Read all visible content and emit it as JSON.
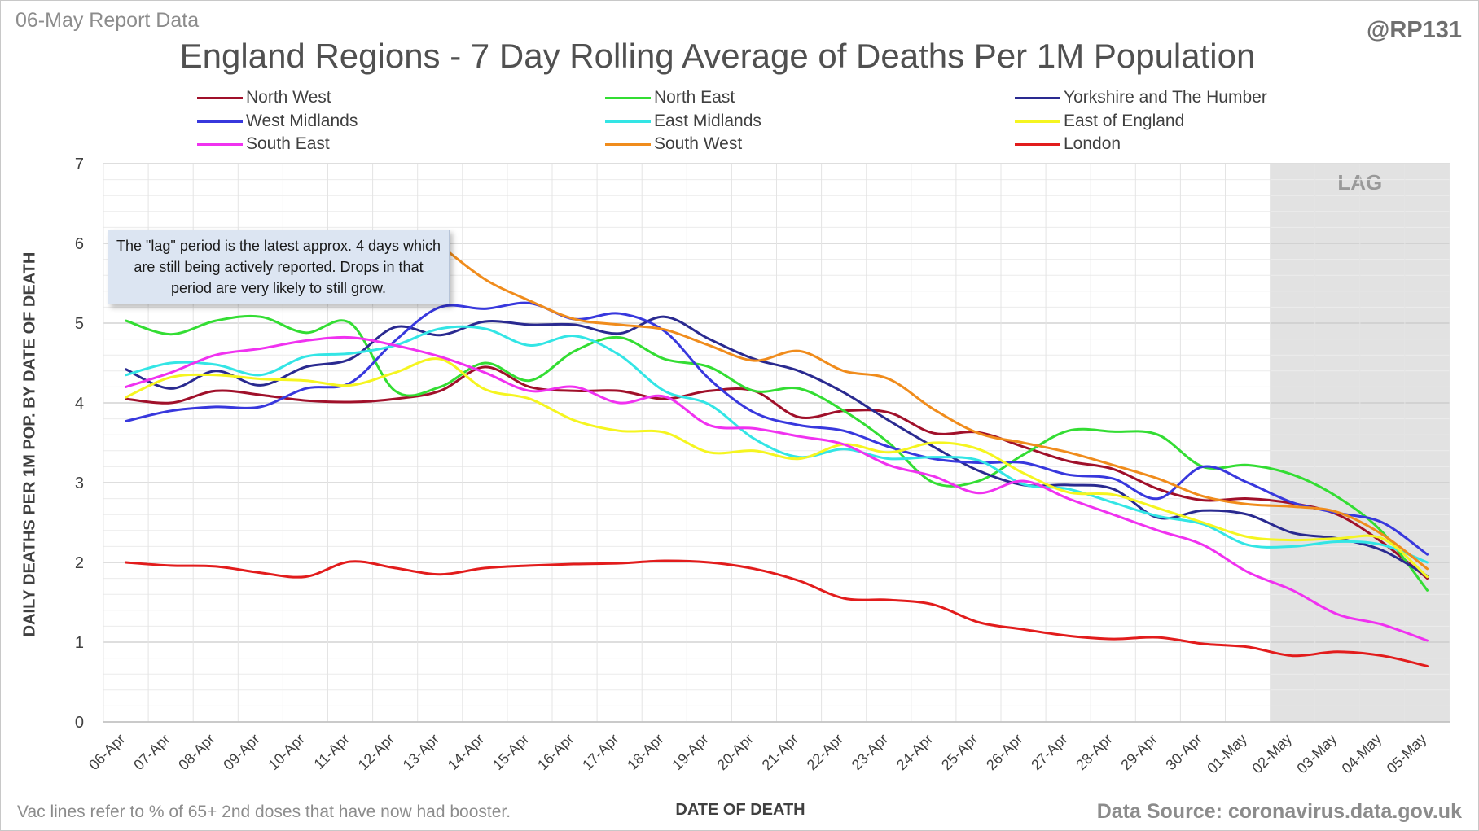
{
  "header": {
    "report_date": "06-May Report Data",
    "handle": "@RP131",
    "title": "England Regions - 7 Day Rolling Average of Deaths Per 1M Population"
  },
  "footer": {
    "vac_note": "Vac lines refer to % of 65+ 2nd doses that have now had booster.",
    "source": "Data Source: coronavirus.data.gov.uk"
  },
  "annotation": {
    "note": "The \"lag\" period is the latest approx. 4 days which are still being actively reported.  Drops in that period are very likely to still grow.",
    "lag_label": "LAG"
  },
  "chart_data": {
    "type": "line",
    "title": "England Regions - 7 Day Rolling Average of Deaths Per 1M Population",
    "xlabel": "DATE OF DEATH",
    "ylabel": "DAILY DEATHS PER 1M POP. BY DATE OF DEATH",
    "ylim": [
      0,
      7
    ],
    "yticks": [
      0,
      1,
      2,
      3,
      4,
      5,
      6,
      7
    ],
    "grid": true,
    "legend_position": "top",
    "lag_start": "02-May",
    "lag_end": "05-May",
    "categories": [
      "06-Apr",
      "07-Apr",
      "08-Apr",
      "09-Apr",
      "10-Apr",
      "11-Apr",
      "12-Apr",
      "13-Apr",
      "14-Apr",
      "15-Apr",
      "16-Apr",
      "17-Apr",
      "18-Apr",
      "19-Apr",
      "20-Apr",
      "21-Apr",
      "22-Apr",
      "23-Apr",
      "24-Apr",
      "25-Apr",
      "26-Apr",
      "27-Apr",
      "28-Apr",
      "29-Apr",
      "30-Apr",
      "01-May",
      "02-May",
      "03-May",
      "04-May",
      "05-May"
    ],
    "series": [
      {
        "name": "North West",
        "color": "#a0102a",
        "values": [
          4.05,
          4.0,
          4.15,
          4.1,
          4.03,
          4.01,
          4.05,
          4.15,
          4.45,
          4.2,
          4.15,
          4.15,
          4.05,
          4.15,
          4.15,
          3.82,
          3.9,
          3.88,
          3.62,
          3.63,
          3.45,
          3.27,
          3.17,
          2.92,
          2.78,
          2.8,
          2.74,
          2.6,
          2.25,
          1.8
        ]
      },
      {
        "name": "North East",
        "color": "#33dd33",
        "values": [
          5.03,
          4.86,
          5.03,
          5.08,
          4.88,
          5.0,
          4.15,
          4.2,
          4.5,
          4.28,
          4.65,
          4.82,
          4.55,
          4.45,
          4.15,
          4.18,
          3.9,
          3.5,
          3.0,
          3.02,
          3.35,
          3.65,
          3.64,
          3.6,
          3.2,
          3.22,
          3.1,
          2.82,
          2.38,
          1.65
        ]
      },
      {
        "name": "Yorkshire and The Humber",
        "color": "#2a2a90",
        "values": [
          4.42,
          4.18,
          4.4,
          4.22,
          4.45,
          4.55,
          4.95,
          4.85,
          5.02,
          4.98,
          4.98,
          4.87,
          5.08,
          4.8,
          4.55,
          4.4,
          4.13,
          3.78,
          3.45,
          3.15,
          2.97,
          2.97,
          2.92,
          2.56,
          2.65,
          2.6,
          2.37,
          2.3,
          2.15,
          1.83
        ]
      },
      {
        "name": "West Midlands",
        "color": "#3838dd",
        "values": [
          3.77,
          3.9,
          3.95,
          3.95,
          4.18,
          4.25,
          4.78,
          5.2,
          5.18,
          5.25,
          5.05,
          5.12,
          4.9,
          4.3,
          3.88,
          3.72,
          3.65,
          3.45,
          3.3,
          3.25,
          3.25,
          3.1,
          3.05,
          2.8,
          3.2,
          3.0,
          2.75,
          2.62,
          2.5,
          2.1
        ]
      },
      {
        "name": "East Midlands",
        "color": "#33e5e5",
        "values": [
          4.35,
          4.5,
          4.48,
          4.35,
          4.58,
          4.62,
          4.72,
          4.93,
          4.93,
          4.72,
          4.84,
          4.6,
          4.15,
          3.98,
          3.55,
          3.32,
          3.42,
          3.3,
          3.32,
          3.28,
          2.98,
          2.92,
          2.75,
          2.58,
          2.48,
          2.22,
          2.2,
          2.26,
          2.22,
          2.0
        ]
      },
      {
        "name": "East of England",
        "color": "#f5f520",
        "values": [
          4.07,
          4.32,
          4.35,
          4.3,
          4.28,
          4.22,
          4.38,
          4.55,
          4.17,
          4.05,
          3.78,
          3.65,
          3.63,
          3.38,
          3.4,
          3.3,
          3.48,
          3.38,
          3.5,
          3.42,
          3.12,
          2.88,
          2.85,
          2.68,
          2.5,
          2.32,
          2.28,
          2.3,
          2.3,
          1.82
        ]
      },
      {
        "name": "South East",
        "color": "#f032f0",
        "values": [
          4.2,
          4.38,
          4.6,
          4.68,
          4.78,
          4.82,
          4.72,
          4.58,
          4.38,
          4.15,
          4.2,
          4.0,
          4.08,
          3.72,
          3.68,
          3.58,
          3.48,
          3.22,
          3.08,
          2.87,
          3.02,
          2.8,
          2.6,
          2.4,
          2.22,
          1.88,
          1.65,
          1.35,
          1.22,
          1.02
        ]
      },
      {
        "name": "South West",
        "color": "#f08c1c",
        "values": [
          null,
          null,
          null,
          null,
          null,
          null,
          null,
          5.98,
          5.55,
          5.28,
          5.05,
          4.98,
          4.92,
          4.72,
          4.53,
          4.65,
          4.4,
          4.3,
          3.92,
          3.62,
          3.5,
          3.38,
          3.22,
          3.05,
          2.83,
          2.73,
          2.7,
          2.63,
          2.35,
          1.92
        ]
      },
      {
        "name": "London",
        "color": "#e21c1c",
        "values": [
          2.0,
          1.96,
          1.95,
          1.87,
          1.82,
          2.01,
          1.93,
          1.85,
          1.93,
          1.96,
          1.98,
          1.99,
          2.02,
          2.0,
          1.92,
          1.77,
          1.55,
          1.53,
          1.47,
          1.25,
          1.16,
          1.08,
          1.04,
          1.06,
          0.98,
          0.94,
          0.83,
          0.88,
          0.83,
          0.7
        ]
      }
    ]
  }
}
